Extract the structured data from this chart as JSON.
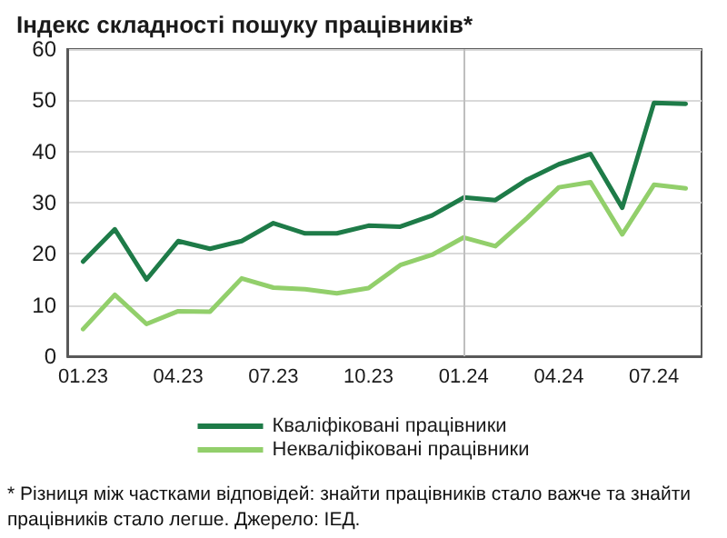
{
  "chart_data": {
    "type": "line",
    "title": "Індекс складності пошуку працівників*",
    "categories": [
      "01.23",
      null,
      null,
      "04.23",
      null,
      null,
      "07.23",
      null,
      null,
      "10.23",
      null,
      null,
      "01.24",
      null,
      null,
      "04.24",
      null,
      null,
      "07.24",
      null
    ],
    "series": [
      {
        "name": "Кваліфіковані працівники",
        "color": "#1e7b48",
        "values": [
          18.5,
          24.8,
          15,
          22.5,
          21,
          22.5,
          26,
          24,
          24,
          25.5,
          25.3,
          27.5,
          31,
          30.5,
          34.5,
          37.5,
          39.5,
          29,
          49.5,
          49.3
        ]
      },
      {
        "name": "Некваліфіковані працівники",
        "color": "#92cf6b",
        "values": [
          5.3,
          12,
          6.3,
          8.8,
          8.7,
          15.2,
          13.4,
          13.1,
          12.3,
          13.3,
          17.8,
          19.8,
          23.2,
          21.5,
          27,
          33,
          34,
          23.8,
          33.5,
          32.8
        ]
      }
    ],
    "ylim": [
      0,
      60
    ],
    "yticks": [
      0,
      10,
      20,
      30,
      40,
      50,
      60
    ],
    "grid": "y",
    "legend": "bottom",
    "marker": "none",
    "line_style": "solid",
    "ref_lines": [
      {
        "axis": "x",
        "value": "01.24",
        "label": null,
        "color": "#bfbfbf"
      }
    ],
    "annotations": [
      "* Різниця між частками відповідей: знайти працівників стало важче та знайти працівників стало легше. Джерело: ІЕД."
    ]
  }
}
